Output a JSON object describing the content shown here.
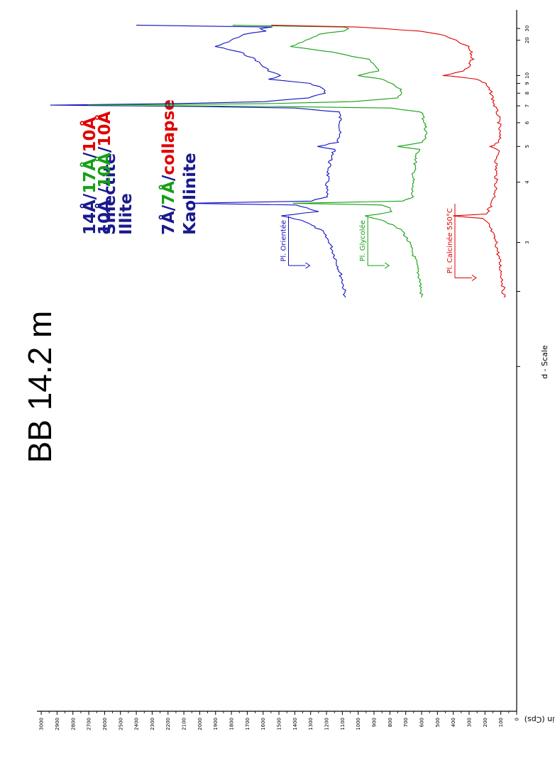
{
  "chart_data": {
    "type": "line",
    "title": "BB 14.2 m",
    "xlabel": "d - Scale",
    "ylabel": "Lin (Cps)",
    "x_scale": "reciprocal (2-theta)",
    "x_ticks": [
      "30",
      "20",
      "10",
      "9",
      "8",
      "7",
      "6",
      "5",
      "4",
      "3"
    ],
    "y_ticks": [
      "0",
      "100",
      "200",
      "300",
      "400",
      "500",
      "600",
      "700",
      "800",
      "900",
      "1000",
      "1100",
      "1200",
      "1300",
      "1400",
      "1500",
      "1600",
      "1700",
      "1800",
      "1900",
      "2000",
      "2100",
      "2200",
      "2300",
      "2400",
      "2500",
      "2600",
      "2700",
      "2800",
      "2900",
      "3000"
    ],
    "ylim": [
      0,
      3000
    ],
    "colors": {
      "blue": "#1010c0",
      "green": "#14a014",
      "red": "#e00000",
      "navy": "#1a1a8c"
    },
    "legend": [
      {
        "parts": [
          {
            "text": "14Å",
            "color": "navy"
          },
          {
            "text": "/",
            "color": "navy"
          },
          {
            "text": "17Å",
            "color": "green"
          },
          {
            "text": "/",
            "color": "navy"
          },
          {
            "text": "10Å",
            "color": "red"
          }
        ]
      },
      {
        "parts": [
          {
            "text": "Smectite",
            "color": "navy"
          }
        ]
      },
      {
        "parts": [
          {
            "text": "10Å /",
            "color": "navy"
          },
          {
            "text": "10Å",
            "color": "green"
          },
          {
            "text": "/",
            "color": "navy"
          },
          {
            "text": "10Å",
            "color": "red"
          }
        ]
      },
      {
        "parts": [
          {
            "text": "Illite",
            "color": "navy"
          }
        ]
      },
      {
        "parts": [
          {
            "text": "7Å",
            "color": "navy"
          },
          {
            "text": "/",
            "color": "navy"
          },
          {
            "text": "7Å",
            "color": "green"
          },
          {
            "text": "/",
            "color": "navy"
          },
          {
            "text": "collapse",
            "color": "red"
          }
        ]
      },
      {
        "parts": [
          {
            "text": "Kaolinite",
            "color": "navy"
          }
        ]
      }
    ],
    "series": [
      {
        "name": "Pl. Orientée",
        "color": "blue",
        "points": [
          [
            35,
            2400
          ],
          [
            32,
            1550
          ],
          [
            30,
            1620
          ],
          [
            27,
            1590
          ],
          [
            24,
            1720
          ],
          [
            20,
            1800
          ],
          [
            17,
            1900
          ],
          [
            15,
            1750
          ],
          [
            13,
            1650
          ],
          [
            11.5,
            1600
          ],
          [
            10.7,
            1560
          ],
          [
            10,
            1490
          ],
          [
            9.5,
            1560
          ],
          [
            9.0,
            1310
          ],
          [
            8.5,
            1220
          ],
          [
            8.0,
            1210
          ],
          [
            7.6,
            1320
          ],
          [
            7.3,
            1600
          ],
          [
            7.15,
            2200
          ],
          [
            7.05,
            2940
          ],
          [
            6.95,
            2000
          ],
          [
            6.85,
            1400
          ],
          [
            6.6,
            1120
          ],
          [
            6.0,
            1110
          ],
          [
            5.5,
            1120
          ],
          [
            5.15,
            1130
          ],
          [
            5.0,
            1260
          ],
          [
            4.9,
            1150
          ],
          [
            4.7,
            1160
          ],
          [
            4.5,
            1180
          ],
          [
            4.2,
            1190
          ],
          [
            3.9,
            1200
          ],
          [
            3.7,
            1200
          ],
          [
            3.62,
            1300
          ],
          [
            3.58,
            2100
          ],
          [
            3.55,
            1400
          ],
          [
            3.5,
            1330
          ],
          [
            3.44,
            1260
          ],
          [
            3.37,
            1480
          ],
          [
            3.3,
            1350
          ],
          [
            3.15,
            1230
          ],
          [
            3.0,
            1180
          ],
          [
            2.8,
            1140
          ],
          [
            2.6,
            1100
          ],
          [
            2.45,
            1080
          ]
        ]
      },
      {
        "name": "Pl. Glycolée",
        "color": "green",
        "points": [
          [
            35,
            1800
          ],
          [
            32,
            1100
          ],
          [
            30,
            1060
          ],
          [
            27,
            1100
          ],
          [
            24,
            1250
          ],
          [
            20,
            1330
          ],
          [
            17,
            1420
          ],
          [
            15,
            1170
          ],
          [
            13,
            940
          ],
          [
            11.5,
            890
          ],
          [
            10.7,
            880
          ],
          [
            10,
            1000
          ],
          [
            9.5,
            850
          ],
          [
            9.0,
            800
          ],
          [
            8.5,
            740
          ],
          [
            8.0,
            730
          ],
          [
            7.6,
            750
          ],
          [
            7.3,
            1030
          ],
          [
            7.15,
            1600
          ],
          [
            7.05,
            2700
          ],
          [
            6.95,
            1500
          ],
          [
            6.85,
            800
          ],
          [
            6.6,
            600
          ],
          [
            6.0,
            580
          ],
          [
            5.5,
            570
          ],
          [
            5.15,
            590
          ],
          [
            5.0,
            750
          ],
          [
            4.9,
            620
          ],
          [
            4.7,
            630
          ],
          [
            4.5,
            640
          ],
          [
            4.2,
            650
          ],
          [
            3.9,
            660
          ],
          [
            3.7,
            660
          ],
          [
            3.62,
            720
          ],
          [
            3.58,
            1410
          ],
          [
            3.55,
            860
          ],
          [
            3.5,
            800
          ],
          [
            3.44,
            780
          ],
          [
            3.37,
            950
          ],
          [
            3.3,
            840
          ],
          [
            3.15,
            720
          ],
          [
            3.0,
            680
          ],
          [
            2.8,
            640
          ],
          [
            2.6,
            610
          ],
          [
            2.45,
            600
          ]
        ]
      },
      {
        "name": "Pl. Calcinée 550°C",
        "color": "red",
        "points": [
          [
            35,
            1550
          ],
          [
            32,
            1000
          ],
          [
            30,
            850
          ],
          [
            27,
            620
          ],
          [
            24,
            480
          ],
          [
            20,
            390
          ],
          [
            17,
            310
          ],
          [
            15,
            290
          ],
          [
            13,
            280
          ],
          [
            11.5,
            300
          ],
          [
            10.7,
            330
          ],
          [
            10.2,
            420
          ],
          [
            10.0,
            460
          ],
          [
            9.8,
            360
          ],
          [
            9.5,
            250
          ],
          [
            9.0,
            200
          ],
          [
            8.5,
            180
          ],
          [
            8.0,
            160
          ],
          [
            7.5,
            150
          ],
          [
            7.0,
            140
          ],
          [
            6.5,
            120
          ],
          [
            6.0,
            110
          ],
          [
            5.5,
            110
          ],
          [
            5.15,
            110
          ],
          [
            5.0,
            160
          ],
          [
            4.9,
            120
          ],
          [
            4.7,
            120
          ],
          [
            4.5,
            130
          ],
          [
            4.2,
            130
          ],
          [
            3.9,
            130
          ],
          [
            3.7,
            140
          ],
          [
            3.5,
            170
          ],
          [
            3.4,
            190
          ],
          [
            3.37,
            410
          ],
          [
            3.33,
            220
          ],
          [
            3.25,
            180
          ],
          [
            3.15,
            160
          ],
          [
            3.0,
            130
          ],
          [
            2.8,
            110
          ],
          [
            2.6,
            90
          ],
          [
            2.45,
            80
          ]
        ]
      }
    ]
  }
}
